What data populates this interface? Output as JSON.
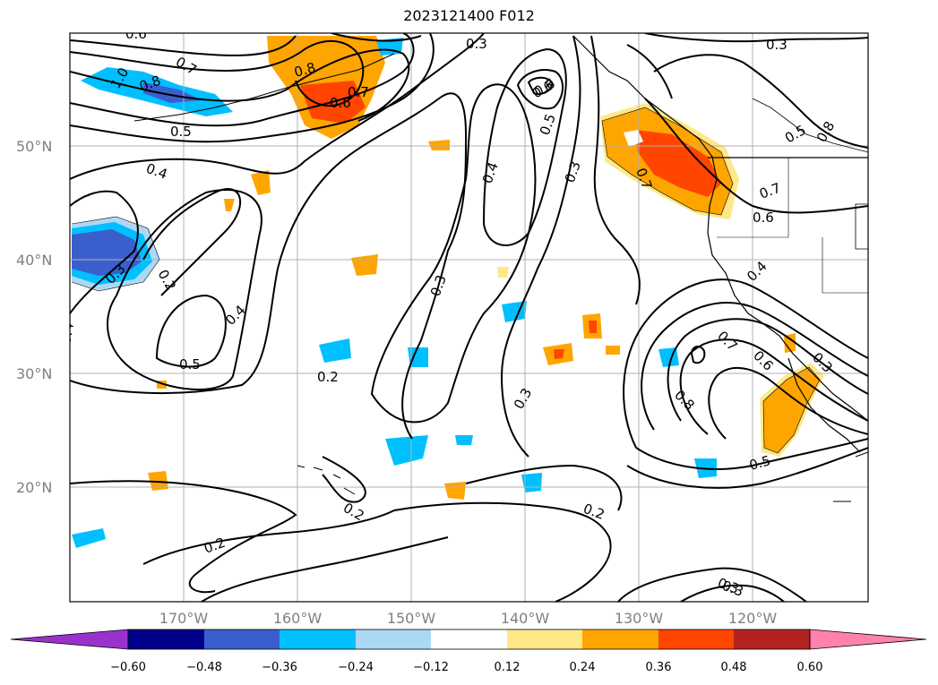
{
  "title": "2023121400 F012",
  "map": {
    "latitude_labels": [
      "50°N",
      "40°N",
      "30°N",
      "20°N"
    ],
    "longitude_labels": [
      "170°W",
      "160°W",
      "150°W",
      "140°W",
      "130°W",
      "120°W"
    ],
    "contour_labels": [
      "0.6",
      "0.7",
      "1.0",
      "0.8",
      "0.5",
      "0.4",
      "0.3",
      "0.2",
      "0.5",
      "0.3",
      "0.6",
      "0.5",
      "0.4",
      "0.3",
      "0.4",
      "0.3",
      "0.2",
      "0.2",
      "0.3",
      "0.2",
      "0.2",
      "0.3",
      "0.8",
      "0.7",
      "0.6",
      "0.5",
      "0.7",
      "0.6",
      "0.4",
      "0.8",
      "0.7",
      "0.6",
      "0.5",
      "0.3",
      "0.4",
      "0.3",
      "0.3",
      "0.6",
      "0.7",
      "0.8"
    ],
    "colors": {
      "purple": "#9932cc",
      "navy": "#00008b",
      "royal_blue": "#3a5fcd",
      "deep_sky_blue": "#00bfff",
      "light_sky_blue": "#add8f5",
      "white": "#ffffff",
      "light_yellow": "#ffe88a",
      "orange": "#ffa500",
      "orange_red": "#ff4500",
      "firebrick": "#b22222",
      "pink": "#ff82ab",
      "contour": "#000000",
      "grid": "#b0b0b0"
    }
  },
  "colorbar": {
    "ticks": [
      "−0.60",
      "−0.48",
      "−0.36",
      "−0.24",
      "−0.12",
      "0.12",
      "0.24",
      "0.36",
      "0.48",
      "0.60"
    ],
    "segments": [
      "#9932cc",
      "#00008b",
      "#3a5fcd",
      "#00bfff",
      "#add8f5",
      "#ffffff",
      "#ffe88a",
      "#ffa500",
      "#ff4500",
      "#b22222",
      "#ff82ab"
    ]
  }
}
